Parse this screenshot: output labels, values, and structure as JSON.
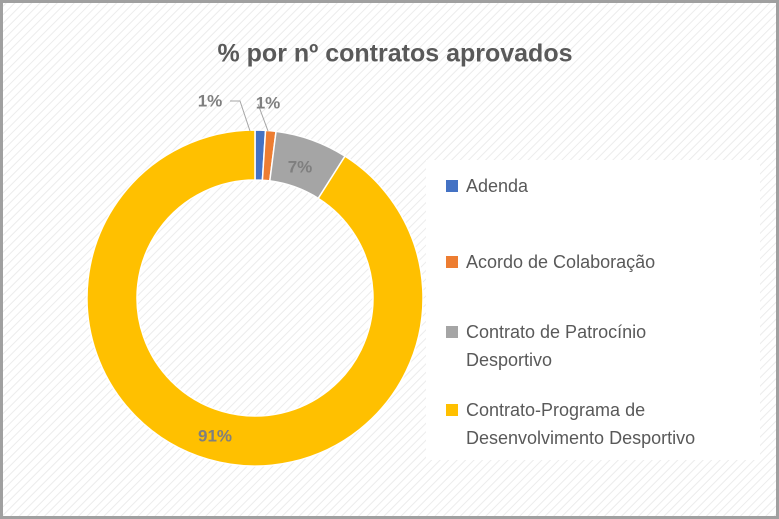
{
  "chart_data": {
    "type": "donut",
    "title": "% por nº contratos aprovados",
    "categories": [
      "Adenda",
      "Acordo de Colaboração",
      "Contrato de Patrocínio Desportivo",
      "Contrato-Programa de Desenvolvimento Desportivo"
    ],
    "values": [
      1,
      1,
      7,
      91
    ],
    "value_labels": [
      "1%",
      "1%",
      "7%",
      "91%"
    ],
    "colors": [
      "#4472c4",
      "#ed7d31",
      "#a5a5a5",
      "#ffc000"
    ],
    "legend": "right"
  }
}
